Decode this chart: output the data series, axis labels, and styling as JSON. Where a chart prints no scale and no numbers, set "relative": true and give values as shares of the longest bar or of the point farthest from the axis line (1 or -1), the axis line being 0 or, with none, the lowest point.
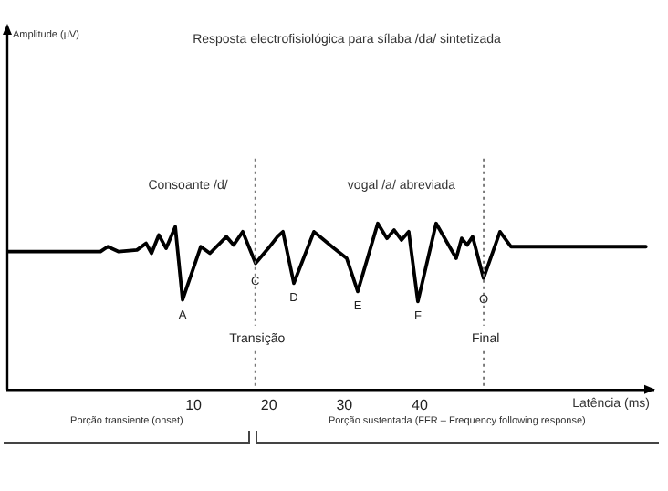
{
  "chart_data": {
    "type": "line",
    "relative": true,
    "title": "Resposta electrofisiológica para sílaba /da/ sintetizada",
    "xlabel": "Latência (ms)",
    "xlim": [
      -14.7,
      71
    ],
    "xticks": [
      10,
      20,
      30,
      40
    ],
    "x": [
      -14.7,
      -2.34,
      -1.37,
      0.08,
      2.5,
      3.71,
      4.43,
      5.4,
      6.37,
      7.58,
      8.55,
      10.97,
      12.18,
      14.36,
      15.32,
      16.53,
      18.23,
      19.92,
      21.13,
      21.86,
      23.31,
      25.97,
      28.63,
      30.32,
      31.78,
      34.44,
      35.65,
      36.61,
      37.58,
      38.55,
      39.76,
      42.18,
      44.84,
      45.57,
      46.29,
      47.02,
      48.47,
      50.65,
      52.1,
      70
    ],
    "series": [
      {
        "color": "#000000",
        "values": [
          0.83,
          0.83,
          0.86,
          0.83,
          0.84,
          0.88,
          0.82,
          0.93,
          0.85,
          0.98,
          0.54,
          0.86,
          0.82,
          0.92,
          0.87,
          0.95,
          0.76,
          0.85,
          0.92,
          0.95,
          0.64,
          0.95,
          0.85,
          0.79,
          0.59,
          1.0,
          0.91,
          0.96,
          0.9,
          0.95,
          0.53,
          1.0,
          0.79,
          0.91,
          0.87,
          0.92,
          0.67,
          0.95,
          0.86,
          0.86
        ]
      }
    ],
    "ref_lines": [
      {
        "axis": "x",
        "value": 18.2,
        "label": "Transição",
        "color": "#777777",
        "line_style": "dotted"
      },
      {
        "axis": "x",
        "value": 48.5,
        "label": "Final",
        "color": "#777777",
        "line_style": "dotted"
      }
    ],
    "annotations": [
      "Amplitude (μV)",
      "Consoante /d/",
      "vogal /a/ abreviada",
      {
        "text": "A",
        "x": 8.55,
        "y": 0.54
      },
      {
        "text": "C",
        "x": 18.2,
        "y": 0.74
      },
      {
        "text": "D",
        "x": 23.31,
        "y": 0.64
      },
      {
        "text": "E",
        "x": 31.78,
        "y": 0.59
      },
      {
        "text": "F",
        "x": 39.76,
        "y": 0.53
      },
      {
        "text": "O",
        "x": 48.5,
        "y": 0.63
      },
      "Porção transiente (onset)",
      "Porção sustentada (FFR –  Frequency following response)"
    ],
    "marker": "none",
    "line_style": "solid",
    "grid": false,
    "legend": false
  }
}
